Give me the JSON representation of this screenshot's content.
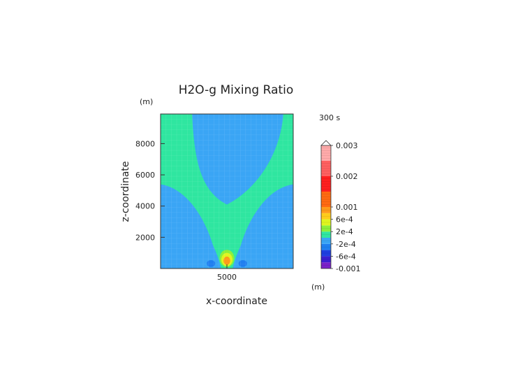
{
  "chart_data": {
    "type": "heatmap",
    "title": "H2O-g Mixing Ratio",
    "xlabel": "x-coordinate",
    "ylabel": "z-coordinate",
    "x_unit": "(m)",
    "y_unit": "(m)",
    "time_label": "300 s",
    "xlim": [
      0,
      10000
    ],
    "ylim": [
      0,
      9900
    ],
    "x_ticks": [
      {
        "value": 5000,
        "label": "5000"
      }
    ],
    "y_ticks": [
      {
        "value": 2000,
        "label": "2000"
      },
      {
        "value": 4000,
        "label": "4000"
      },
      {
        "value": 6000,
        "label": "6000"
      },
      {
        "value": 8000,
        "label": "8000"
      }
    ],
    "grid": true,
    "colorbar": {
      "placement": "right",
      "range": [
        -0.001,
        0.003
      ],
      "labels": [
        {
          "value": 0.003,
          "label": "0.003"
        },
        {
          "value": 0.002,
          "label": "0.002"
        },
        {
          "value": 0.001,
          "label": "0.001"
        },
        {
          "value": 0.0006,
          "label": "6e-4"
        },
        {
          "value": 0.0002,
          "label": "2e-4"
        },
        {
          "value": -0.0002,
          "label": "-2e-4"
        },
        {
          "value": -0.0006,
          "label": "-6e-4"
        },
        {
          "value": -0.001,
          "label": "-0.001"
        }
      ],
      "bands": [
        {
          "from": -0.001,
          "to": -0.0008,
          "color": "#7a22c8"
        },
        {
          "from": -0.0008,
          "to": -0.0006,
          "color": "#3a1fd0"
        },
        {
          "from": -0.0006,
          "to": -0.0004,
          "color": "#1f3fe0"
        },
        {
          "from": -0.0004,
          "to": -0.0002,
          "color": "#1f7ff0"
        },
        {
          "from": -0.0002,
          "to": 0,
          "color": "#3aa5f5"
        },
        {
          "from": 0,
          "to": 0.0002,
          "color": "#2fe6a0"
        },
        {
          "from": 0.0002,
          "to": 0.0004,
          "color": "#8cf03a"
        },
        {
          "from": 0.0004,
          "to": 0.0006,
          "color": "#dff51f"
        },
        {
          "from": 0.0006,
          "to": 0.0008,
          "color": "#ffcc1a"
        },
        {
          "from": 0.0008,
          "to": 0.001,
          "color": "#ff9a1a"
        },
        {
          "from": 0.001,
          "to": 0.0015,
          "color": "#ff6a12"
        },
        {
          "from": 0.0015,
          "to": 0.002,
          "color": "#ff1f1f"
        },
        {
          "from": 0.002,
          "to": 0.0025,
          "color": "#ff6060"
        },
        {
          "from": 0.0025,
          "to": 0.003,
          "color": "#ffaaaa"
        }
      ],
      "over_color": "#ffffff"
    },
    "field": {
      "background_value": -0.0001,
      "background_color": "#3aa5f5",
      "moist_value": 0.0001,
      "moist_color": "#2fe6a0",
      "moist_top_band": [
        5300,
        9900
      ],
      "inner_dry_bottom": 4100,
      "plume_center_x": 5000,
      "bubble": [
        {
          "value": 0.0003,
          "color": "#8cf03a",
          "center": [
            5000,
            650
          ],
          "radius": 550
        },
        {
          "value": 0.0005,
          "color": "#dff51f",
          "center": [
            5000,
            580
          ],
          "radius": 420
        },
        {
          "value": 0.0009,
          "color": "#ff9a1a",
          "center": [
            5000,
            500
          ],
          "radius": 260
        }
      ],
      "dry_spots": [
        {
          "value": -0.0003,
          "color": "#1f7ff0",
          "center": [
            3800,
            320
          ],
          "size": [
            320,
            220
          ]
        },
        {
          "value": -0.0003,
          "color": "#1f7ff0",
          "center": [
            6200,
            320
          ],
          "size": [
            320,
            220
          ]
        }
      ]
    }
  }
}
